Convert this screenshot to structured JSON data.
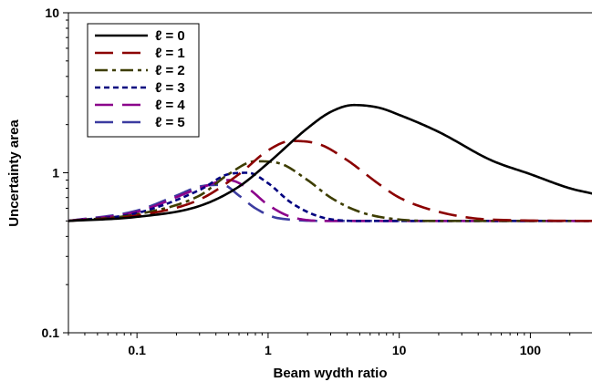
{
  "chart_data": {
    "type": "line",
    "title": "",
    "xlabel": "Beam wydth ratio",
    "ylabel": "Uncertainty area",
    "xscale": "log",
    "yscale": "log",
    "xlim": [
      0.03,
      300
    ],
    "ylim": [
      0.1,
      10
    ],
    "xticks": [
      {
        "value": 0.1,
        "label": "0.1"
      },
      {
        "value": 1,
        "label": "1"
      },
      {
        "value": 10,
        "label": "10"
      },
      {
        "value": 100,
        "label": "100"
      }
    ],
    "yticks": [
      {
        "value": 0.1,
        "label": "0.1"
      },
      {
        "value": 1,
        "label": "1"
      },
      {
        "value": 10,
        "label": "10"
      }
    ],
    "grid": false,
    "legend_position": "top-left",
    "series": [
      {
        "name": "ℓ = 0",
        "color": "#000000",
        "dash": "solid",
        "x": [
          0.03,
          0.1,
          0.3,
          0.6,
          1,
          2,
          3,
          4.5,
          7,
          10,
          20,
          50,
          100,
          200,
          300
        ],
        "y": [
          0.5,
          0.53,
          0.62,
          0.82,
          1.15,
          1.9,
          2.4,
          2.65,
          2.55,
          2.3,
          1.8,
          1.2,
          0.98,
          0.8,
          0.74
        ]
      },
      {
        "name": "ℓ = 1",
        "color": "#8b0000",
        "dash": "long-dash",
        "x": [
          0.03,
          0.1,
          0.3,
          0.6,
          1,
          1.5,
          2.5,
          4,
          7,
          10,
          20,
          50,
          300
        ],
        "y": [
          0.5,
          0.54,
          0.68,
          0.98,
          1.38,
          1.58,
          1.5,
          1.2,
          0.85,
          0.7,
          0.57,
          0.51,
          0.5
        ]
      },
      {
        "name": "ℓ = 2",
        "color": "#3d3d00",
        "dash": "dash-dot",
        "x": [
          0.03,
          0.1,
          0.3,
          0.5,
          0.8,
          1.2,
          2,
          3,
          5,
          10,
          20,
          300
        ],
        "y": [
          0.5,
          0.55,
          0.72,
          0.98,
          1.18,
          1.15,
          0.9,
          0.7,
          0.57,
          0.51,
          0.5,
          0.5
        ]
      },
      {
        "name": "ℓ = 3",
        "color": "#00007f",
        "dash": "short-dash",
        "x": [
          0.03,
          0.1,
          0.3,
          0.5,
          0.7,
          1,
          1.5,
          2.5,
          5,
          300
        ],
        "y": [
          0.5,
          0.56,
          0.78,
          0.98,
          1.0,
          0.86,
          0.65,
          0.53,
          0.5,
          0.5
        ]
      },
      {
        "name": "ℓ = 4",
        "color": "#8b008b",
        "dash": "long-dash",
        "x": [
          0.03,
          0.1,
          0.3,
          0.5,
          0.7,
          1,
          1.5,
          3,
          300
        ],
        "y": [
          0.5,
          0.57,
          0.8,
          0.9,
          0.8,
          0.63,
          0.53,
          0.5,
          0.5
        ]
      },
      {
        "name": "ℓ = 5",
        "color": "#3c3ca0",
        "dash": "long-dash",
        "x": [
          0.03,
          0.1,
          0.2,
          0.3,
          0.45,
          0.6,
          0.8,
          1.2,
          3,
          300
        ],
        "y": [
          0.5,
          0.58,
          0.72,
          0.82,
          0.84,
          0.72,
          0.6,
          0.52,
          0.5,
          0.5
        ]
      }
    ]
  }
}
